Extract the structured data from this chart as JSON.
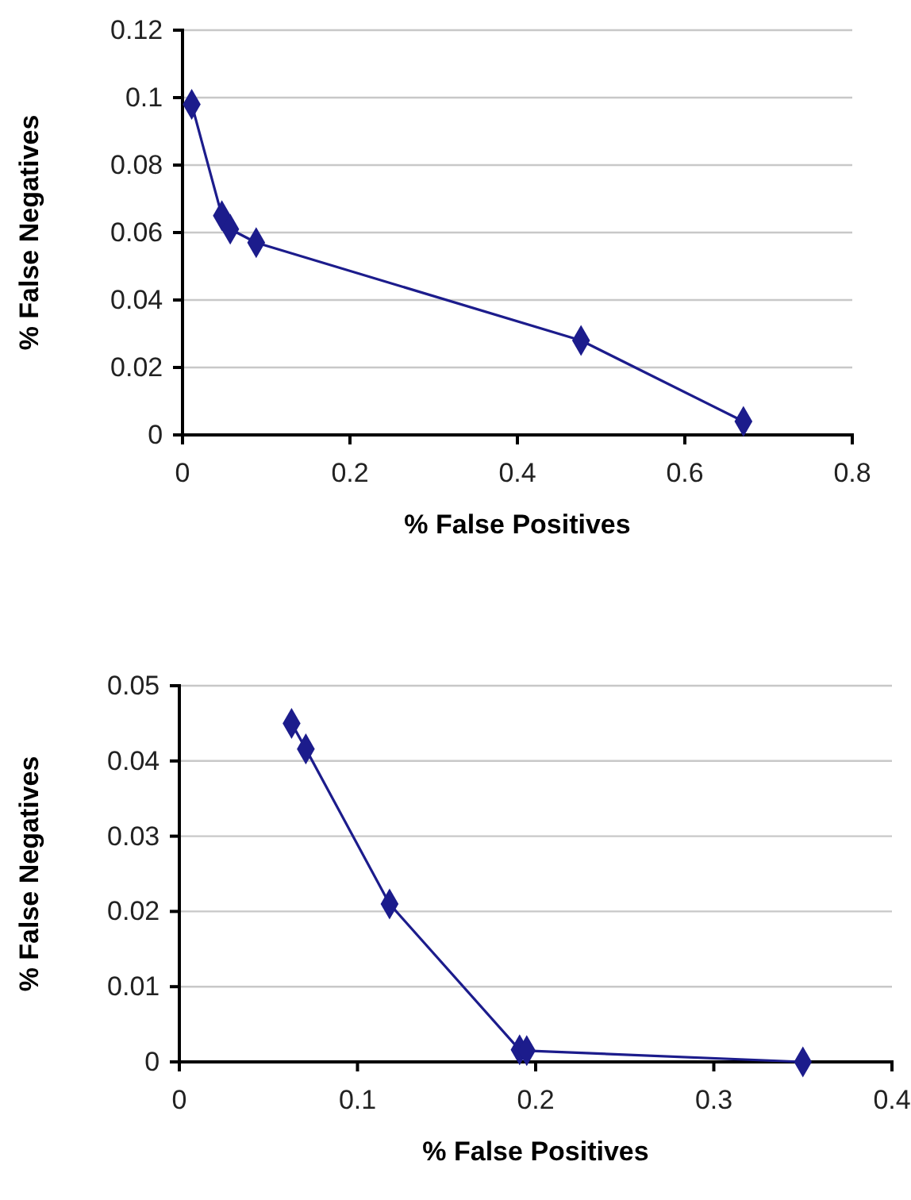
{
  "chart_data": [
    {
      "type": "line",
      "xlabel": "% False Positives",
      "ylabel": "% False Negatives",
      "x": [
        0.011,
        0.047,
        0.057,
        0.088,
        0.476,
        0.67
      ],
      "series": [
        {
          "color": "#1c1c8c",
          "values": [
            0.098,
            0.065,
            0.061,
            0.057,
            0.028,
            0.004
          ]
        }
      ],
      "xlim": [
        0,
        0.8
      ],
      "xticks": [
        0,
        0.2,
        0.4,
        0.6,
        0.8
      ],
      "ylim": [
        0,
        0.12
      ],
      "yticks": [
        0,
        0.02,
        0.04,
        0.06,
        0.08,
        0.1,
        0.12
      ],
      "grid": "y",
      "marker": "diamond",
      "line_style": "solid"
    },
    {
      "type": "line",
      "xlabel": "% False Positives",
      "ylabel": "% False Negatives",
      "x": [
        0.063,
        0.071,
        0.118,
        0.191,
        0.195,
        0.35
      ],
      "series": [
        {
          "color": "#1c1c8c",
          "values": [
            0.045,
            0.0416,
            0.021,
            0.0016,
            0.0015,
            0
          ]
        }
      ],
      "xlim": [
        0,
        0.4
      ],
      "xticks": [
        0,
        0.1,
        0.2,
        0.3,
        0.4
      ],
      "ylim": [
        0,
        0.05
      ],
      "yticks": [
        0,
        0.01,
        0.02,
        0.03,
        0.04,
        0.05
      ],
      "grid": "y",
      "marker": "diamond",
      "line_style": "solid"
    }
  ]
}
